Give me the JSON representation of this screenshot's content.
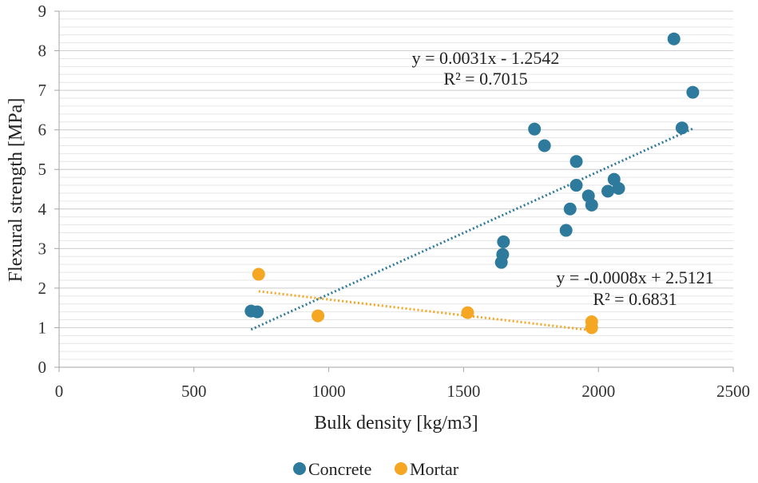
{
  "chart_data": {
    "type": "scatter",
    "title": "",
    "xlabel": "Bulk density [kg/m3]",
    "ylabel": "Flexural strength [MPa]",
    "xlim": [
      0,
      2500
    ],
    "ylim": [
      0,
      9
    ],
    "xticks": [
      0,
      500,
      1000,
      1500,
      2000,
      2500
    ],
    "yticks": [
      0,
      1,
      2,
      3,
      4,
      5,
      6,
      7,
      8,
      9
    ],
    "xtick_labels": [
      "0",
      "500",
      "1000",
      "1500",
      "2000",
      "2500"
    ],
    "ytick_labels": [
      "0",
      "1",
      "2",
      "3",
      "4",
      "5",
      "6",
      "7",
      "8",
      "9"
    ],
    "grid": true,
    "legend_position": "bottom",
    "series": [
      {
        "name": "Concrete",
        "color": "#2e7a9c",
        "points": [
          [
            712,
            1.42
          ],
          [
            735,
            1.4
          ],
          [
            1640,
            2.65
          ],
          [
            1645,
            2.85
          ],
          [
            1648,
            3.17
          ],
          [
            1763,
            6.02
          ],
          [
            1800,
            5.6
          ],
          [
            1880,
            3.46
          ],
          [
            1895,
            4.0
          ],
          [
            1918,
            5.2
          ],
          [
            1918,
            4.6
          ],
          [
            1963,
            4.33
          ],
          [
            1975,
            4.1
          ],
          [
            2035,
            4.45
          ],
          [
            2058,
            4.75
          ],
          [
            2075,
            4.52
          ],
          [
            2280,
            8.3
          ],
          [
            2310,
            6.05
          ],
          [
            2350,
            6.95
          ]
        ],
        "trendline": {
          "slope": 0.0031,
          "intercept": -1.2542,
          "x_range": [
            712,
            2350
          ],
          "equation": "y = 0.0031x - 1.2542",
          "r2": "R² = 0.7015"
        }
      },
      {
        "name": "Mortar",
        "color": "#f5a623",
        "points": [
          [
            740,
            2.35
          ],
          [
            960,
            1.3
          ],
          [
            1515,
            1.38
          ],
          [
            1975,
            1.15
          ],
          [
            1975,
            1.0
          ]
        ],
        "trendline": {
          "slope": -0.0008,
          "intercept": 2.5121,
          "x_range": [
            740,
            1975
          ],
          "equation": "y = -0.0008x + 2.5121",
          "r2": "R² = 0.6831"
        }
      }
    ]
  }
}
